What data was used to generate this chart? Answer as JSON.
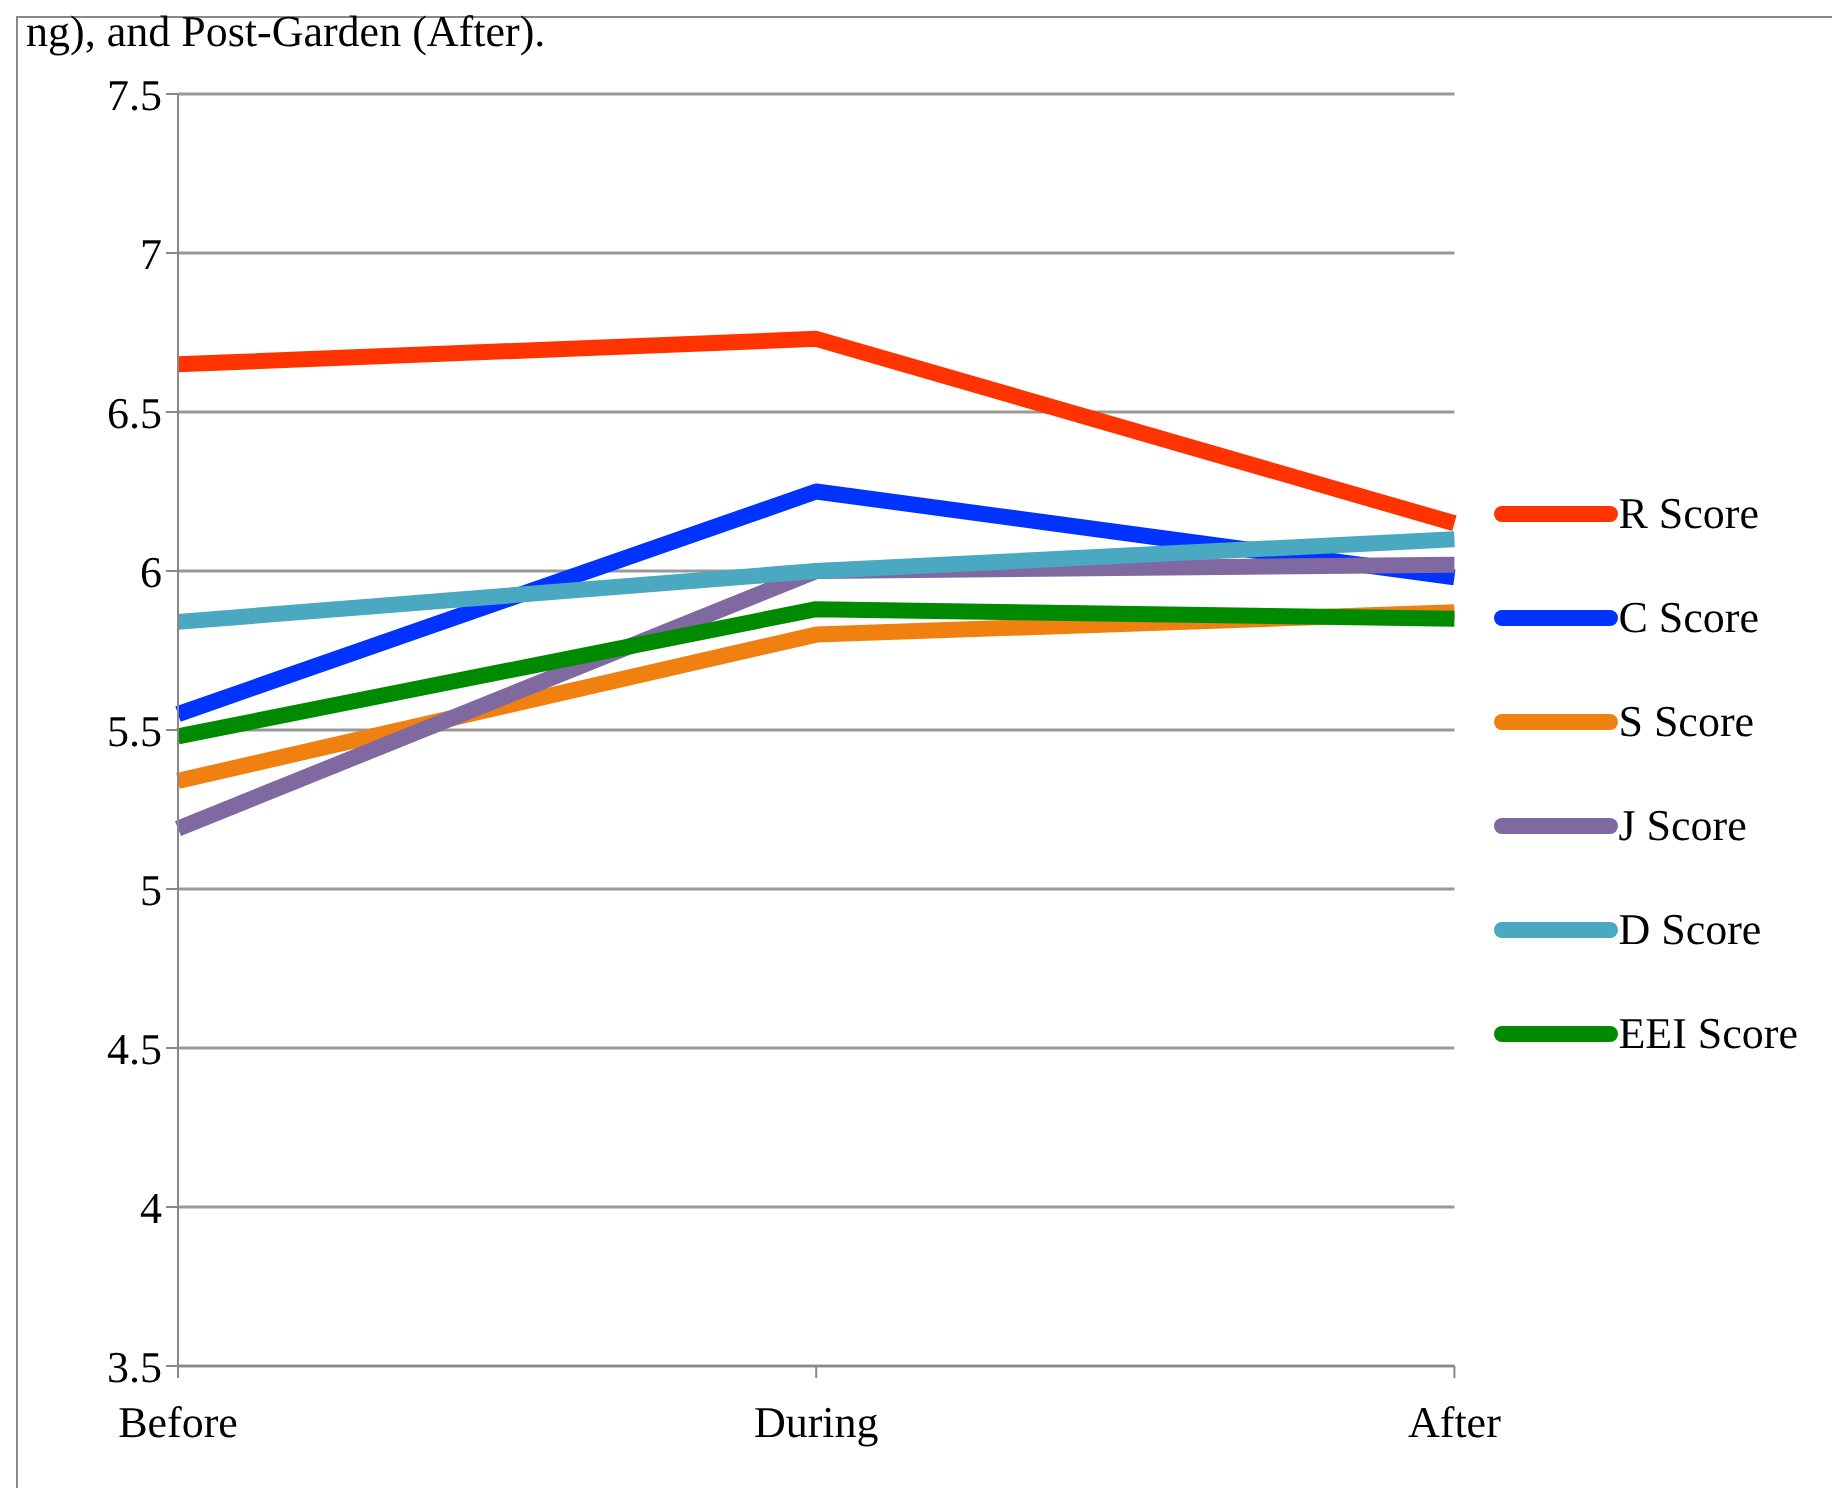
{
  "chart_data": {
    "type": "line",
    "annotations": [
      "ng), and Post-Garden (After)."
    ],
    "categories": [
      "Before",
      "During",
      "After"
    ],
    "series": [
      {
        "name": "R Score",
        "color": "#ff3300",
        "values": [
          6.65,
          6.73,
          6.15
        ]
      },
      {
        "name": "C Score",
        "color": "#0033ff",
        "values": [
          5.55,
          6.25,
          5.98
        ]
      },
      {
        "name": "S Score",
        "color": "#f08010",
        "values": [
          5.34,
          5.8,
          5.87
        ]
      },
      {
        "name": "J Score",
        "color": "#8068a0",
        "values": [
          5.19,
          6.0,
          6.02
        ]
      },
      {
        "name": "D Score",
        "color": "#4aa8c0",
        "values": [
          5.84,
          6.0,
          6.1
        ]
      },
      {
        "name": "EEI Score",
        "color": "#008a00",
        "values": [
          5.48,
          5.88,
          5.85
        ]
      }
    ],
    "ylim": [
      3.5,
      7.5
    ],
    "yticks": [
      3.5,
      4,
      4.5,
      5,
      5.5,
      6,
      6.5,
      7,
      7.5
    ],
    "grid": "y",
    "legend": "right",
    "marker": "none",
    "line_style": "solid"
  }
}
